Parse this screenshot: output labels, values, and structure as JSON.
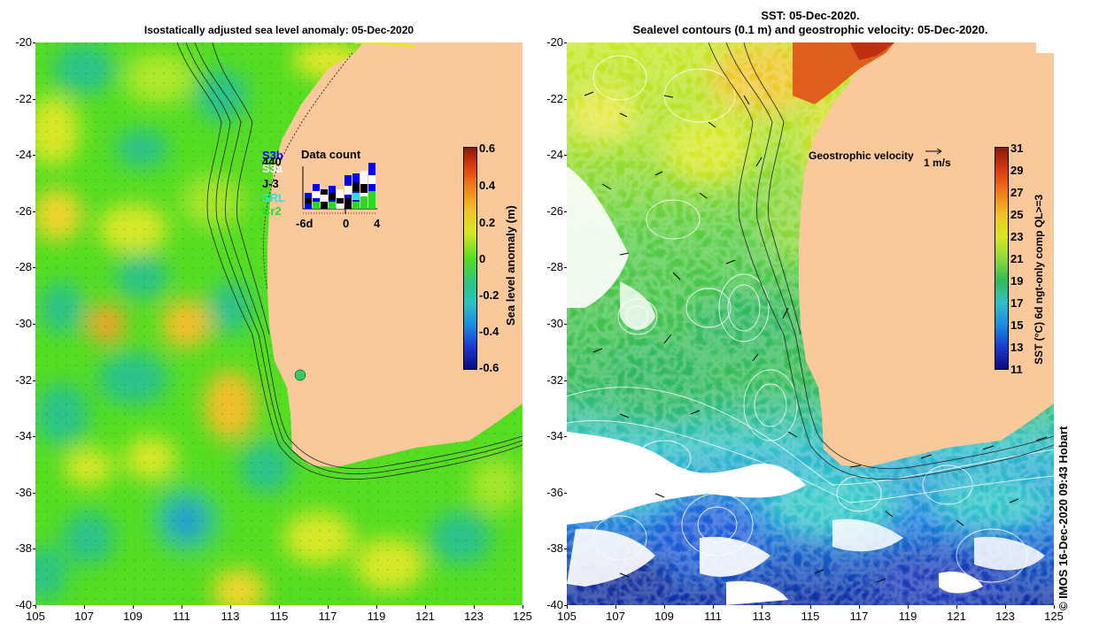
{
  "left_panel": {
    "title": "Isostatically adjusted sea level anomaly: 05-Dec-2020",
    "colorbar": {
      "label": "Sea level anomaly (m)",
      "ticks": [
        "0.6",
        "0.4",
        "0.2",
        "0",
        "-0.2",
        "-0.4",
        "-0.6"
      ]
    },
    "inset": {
      "title": "Data count",
      "satellites": [
        {
          "name": "S3b",
          "color": "#0000ff"
        },
        {
          "name": "S3a",
          "color": "#ffffff"
        },
        {
          "name": "J-3",
          "color": "#000000"
        },
        {
          "name": "SRL",
          "color": "#33dddd"
        },
        {
          "name": "Cr2",
          "color": "#22dd22"
        }
      ],
      "count_label": "440",
      "x_ticks": [
        "-6d",
        "0",
        "4"
      ]
    }
  },
  "right_panel": {
    "title_line1": "SST: 05-Dec-2020.",
    "title_line2": "Sealevel contours (0.1 m) and geostrophic velocity: 05-Dec-2020.",
    "velocity_legend": {
      "label": "Geostrophic velocity",
      "scale": "1 m/s"
    },
    "colorbar": {
      "label": "SST (°C) 6d ngt-only comp QL>=3",
      "ticks": [
        "31",
        "29",
        "27",
        "25",
        "23",
        "21",
        "19",
        "17",
        "15",
        "13",
        "11"
      ]
    }
  },
  "axes": {
    "y_ticks": [
      "-20",
      "-22",
      "-24",
      "-26",
      "-28",
      "-30",
      "-32",
      "-34",
      "-36",
      "-38",
      "-40"
    ],
    "x_ticks": [
      "105",
      "107",
      "109",
      "111",
      "113",
      "115",
      "117",
      "119",
      "121",
      "123",
      "125"
    ]
  },
  "credit": "© IMOS 16-Dec-2020 09:43 Hobart",
  "colors": {
    "land": "#f9c89b",
    "sla_base": "#55dd22",
    "sst_base": "#33cc55"
  }
}
